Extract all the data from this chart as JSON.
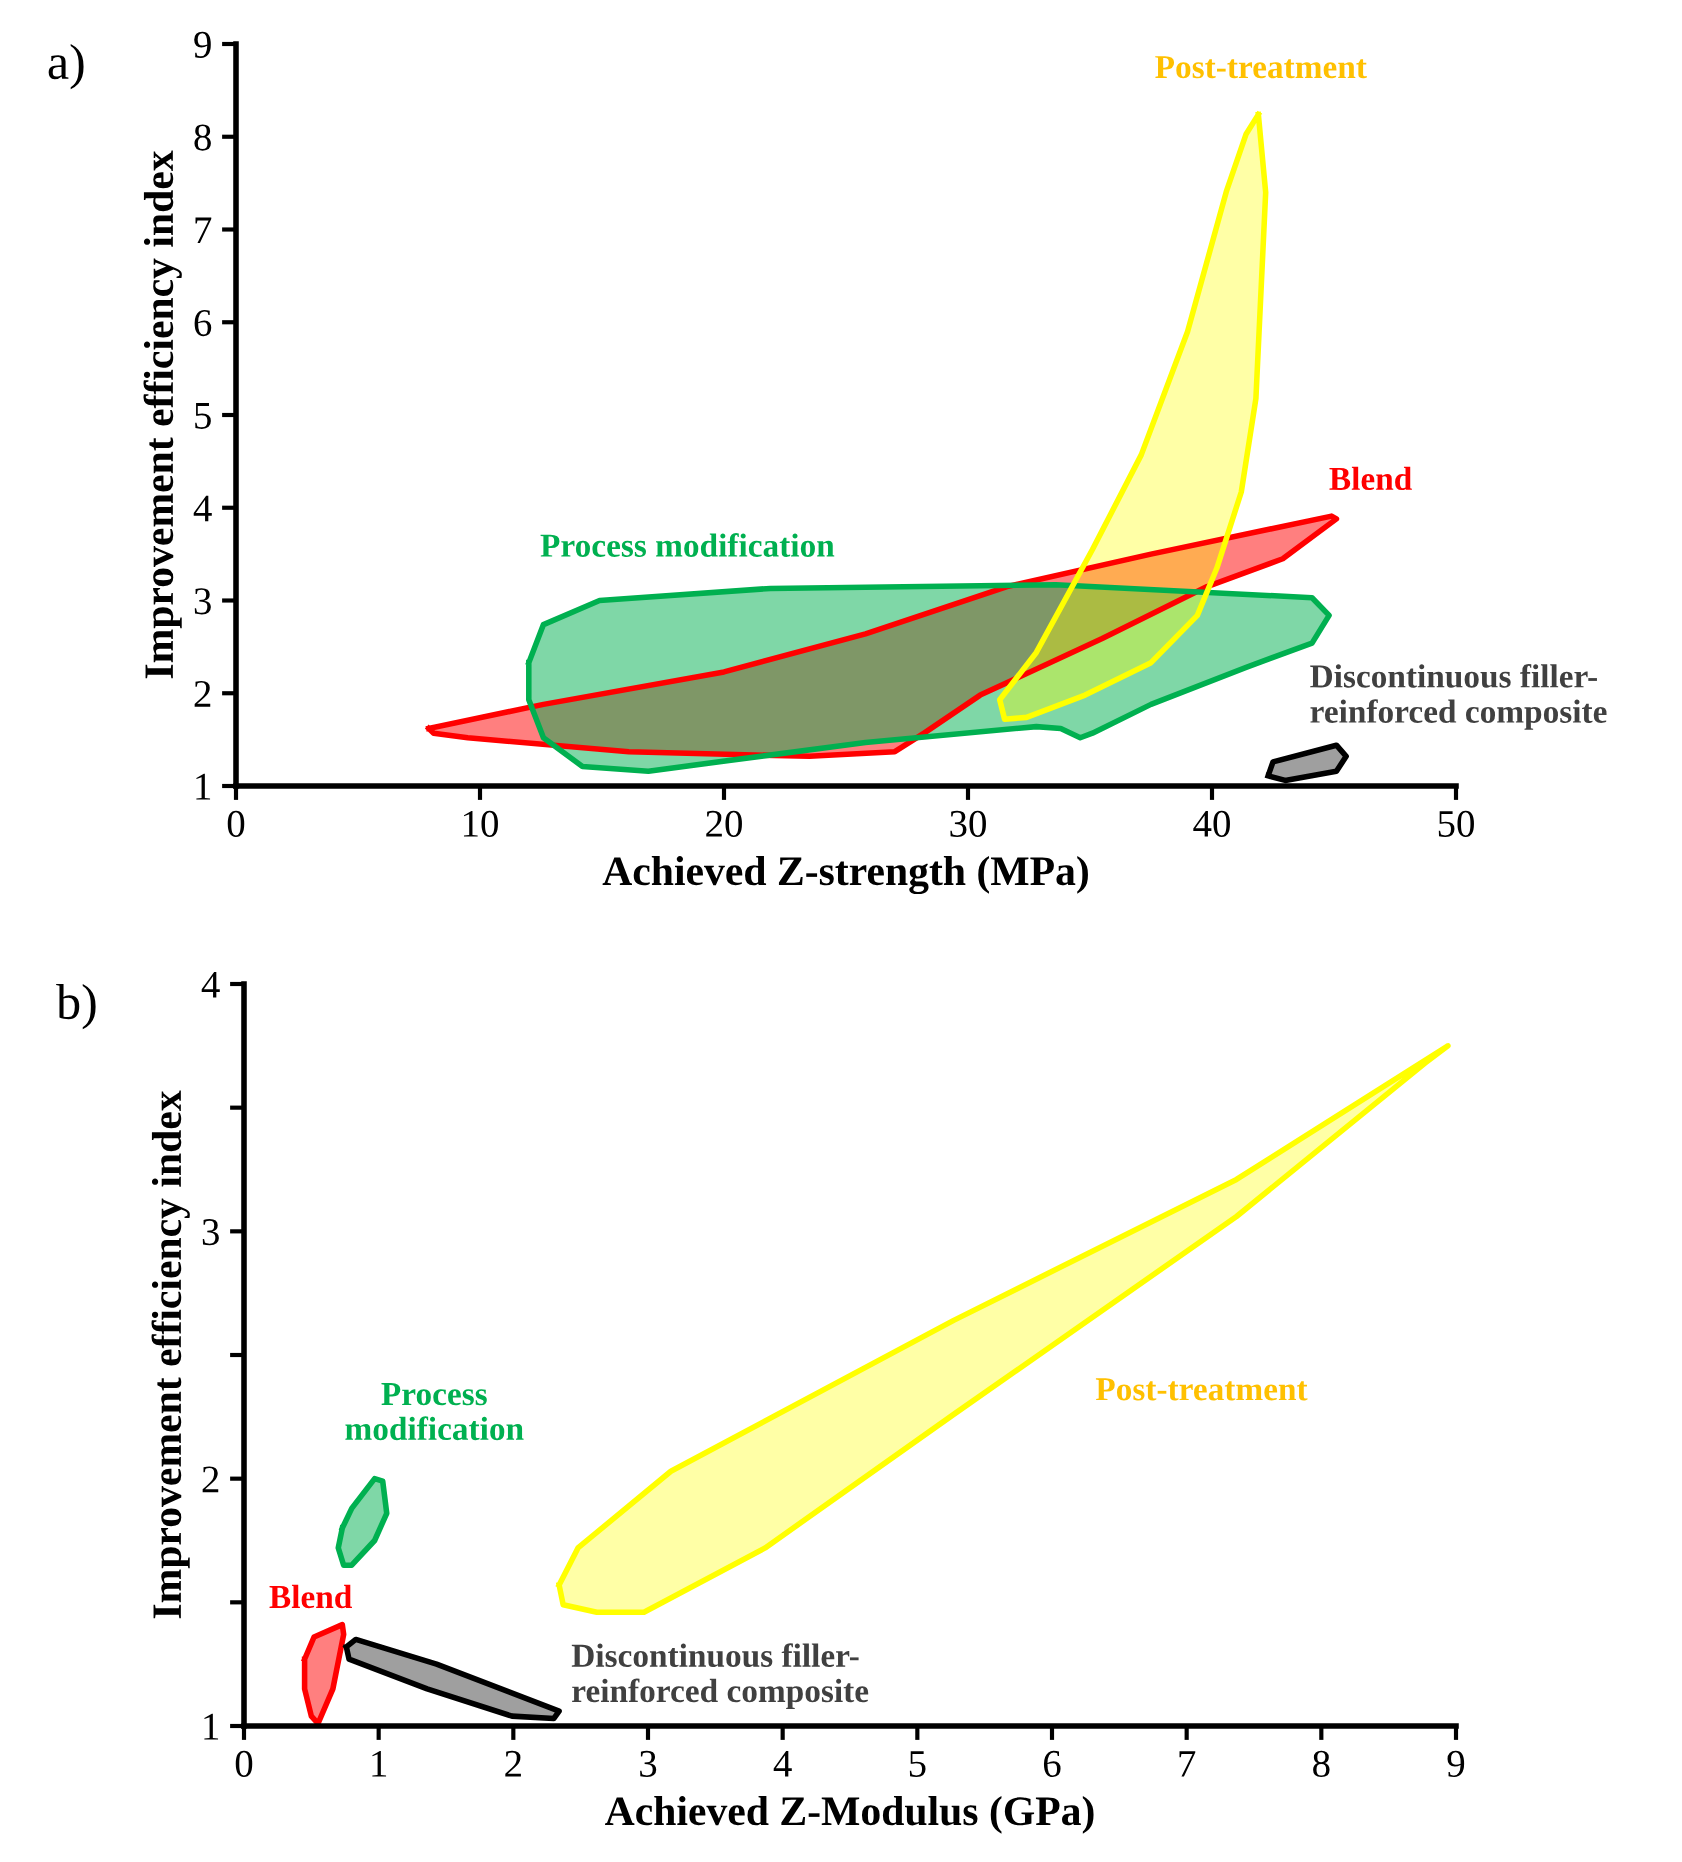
{
  "chart_data": [
    {
      "type": "area",
      "title": "a)",
      "xlabel": "Achieved Z-strength (MPa)",
      "ylabel": "Improvement efficiency index",
      "xlim": [
        0,
        50
      ],
      "ylim": [
        1,
        9
      ],
      "xticks": [
        0,
        10,
        20,
        30,
        40,
        50
      ],
      "yticks": [
        1,
        2,
        3,
        4,
        5,
        6,
        7,
        8,
        9
      ],
      "grid": false,
      "legend": false,
      "series": [
        {
          "name": "Blend",
          "color": "#ff0000",
          "x": [
            7.9,
            12.6,
            20.0,
            25.8,
            31.6,
            37.5,
            44.9,
            45.1,
            42.9,
            39.8,
            35.5,
            30.5,
            28.2,
            27.0,
            23.5,
            16.1,
            9.5,
            8.1
          ],
          "values": [
            1.62,
            1.88,
            2.23,
            2.64,
            3.15,
            3.5,
            3.91,
            3.88,
            3.45,
            3.15,
            2.59,
            1.98,
            1.57,
            1.37,
            1.32,
            1.37,
            1.52,
            1.57
          ]
        },
        {
          "name": "Process modification",
          "color": "#00b050",
          "x": [
            12.0,
            12.6,
            14.9,
            21.9,
            33.6,
            44.1,
            44.8,
            44.1,
            41.4,
            37.5,
            35.1,
            34.6,
            33.8,
            32.8,
            25.8,
            16.9,
            14.2,
            12.6,
            12.0
          ],
          "values": [
            2.33,
            2.74,
            3.0,
            3.13,
            3.17,
            3.03,
            2.84,
            2.54,
            2.28,
            1.88,
            1.57,
            1.52,
            1.62,
            1.64,
            1.47,
            1.16,
            1.21,
            1.52,
            1.93
          ]
        },
        {
          "name": "Post-treatment",
          "color": "#ffff00",
          "x": [
            41.9,
            42.2,
            41.8,
            41.2,
            40.2,
            39.4,
            37.5,
            34.8,
            32.4,
            31.5,
            31.3,
            32.8,
            35.1,
            37.1,
            39.0,
            40.6,
            41.4
          ],
          "values": [
            8.24,
            7.4,
            5.18,
            4.17,
            3.35,
            2.84,
            2.33,
            1.98,
            1.74,
            1.72,
            1.93,
            2.44,
            3.55,
            4.57,
            5.9,
            7.42,
            8.03
          ]
        },
        {
          "name": "Discontinuous filler-\nreinforced composite",
          "color": "#404040",
          "x": [
            42.3,
            42.5,
            45.1,
            45.5,
            45.1,
            43.0
          ],
          "values": [
            1.11,
            1.26,
            1.44,
            1.32,
            1.16,
            1.06
          ]
        }
      ]
    },
    {
      "type": "area",
      "title": "b)",
      "xlabel": "Achieved Z-Modulus (GPa)",
      "ylabel": "Improvement efficiency index",
      "xlim": [
        0,
        9
      ],
      "ylim": [
        1,
        4
      ],
      "xticks": [
        0,
        1,
        2,
        3,
        4,
        5,
        6,
        7,
        8,
        9
      ],
      "yticks": [
        1,
        {
          "value": 1.5,
          "label": null
        },
        2,
        {
          "value": 2.5,
          "label": null
        },
        3,
        {
          "value": 3.5,
          "label": null
        },
        4
      ],
      "grid": false,
      "legend": false,
      "series": [
        {
          "name": "Blend",
          "color": "#ff0000",
          "x": [
            0.45,
            0.52,
            0.73,
            0.74,
            0.66,
            0.55,
            0.5,
            0.45
          ],
          "values": [
            1.27,
            1.36,
            1.41,
            1.37,
            1.15,
            1.01,
            1.04,
            1.15
          ]
        },
        {
          "name": "Process\nmodification",
          "color": "#00b050",
          "x": [
            0.73,
            0.8,
            0.97,
            1.03,
            1.06,
            0.97,
            0.8,
            0.74,
            0.7
          ],
          "values": [
            1.8,
            1.88,
            2.0,
            1.99,
            1.86,
            1.75,
            1.65,
            1.65,
            1.72
          ]
        },
        {
          "name": "Post-treatment",
          "color": "#ffff00",
          "x": [
            2.34,
            2.48,
            3.17,
            5.27,
            7.37,
            8.94,
            8.77,
            7.37,
            5.27,
            3.87,
            2.97,
            2.62,
            2.37
          ],
          "values": [
            1.57,
            1.72,
            2.03,
            2.64,
            3.21,
            3.75,
            3.68,
            3.06,
            2.26,
            1.72,
            1.46,
            1.46,
            1.49
          ]
        },
        {
          "name": "Discontinuous filler-\nreinforced composite",
          "color": "#404040",
          "x": [
            0.76,
            0.83,
            1.43,
            2.34,
            2.3,
            1.99,
            1.36,
            0.78
          ],
          "values": [
            1.32,
            1.35,
            1.25,
            1.06,
            1.03,
            1.04,
            1.15,
            1.27
          ]
        }
      ]
    }
  ]
}
